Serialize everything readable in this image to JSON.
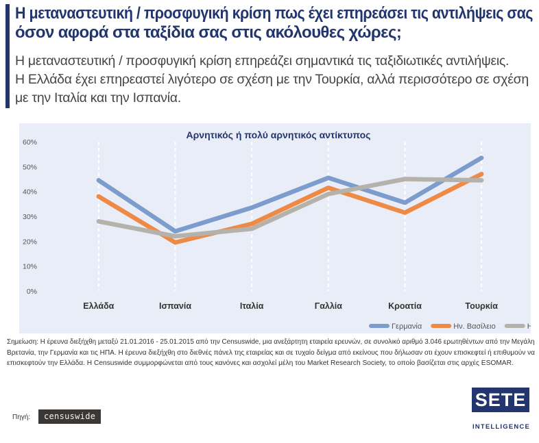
{
  "header": {
    "title_line1": "Η μεταναστευτική / προσφυγική κρίση πως έχει επηρεάσει τις αντιλήψεις σας",
    "title_line2": "όσον αφορά στα ταξίδια σας στις ακόλουθες χώρες;",
    "lead_line1": "Η μεταναστευτική / προσφυγική κρίση επηρεάζει σημαντικά τις ταξιδιωτικές αντιλήψεις.",
    "lead_line2": "Η Ελλάδα έχει επηρεαστεί λιγότερο σε σχέση με την Τουρκία, αλλά περισσότερο σε σχέση",
    "lead_line3": "με την Ιταλία και την Ισπανία."
  },
  "chart_data": {
    "type": "line",
    "title": "Αρνητικός ή πολύ αρνητικός αντίκτυπος",
    "categories": [
      "Ελλάδα",
      "Ισπανία",
      "Ιταλία",
      "Γαλλία",
      "Κροατία",
      "Τουρκία"
    ],
    "y_ticks": [
      "0%",
      "10%",
      "20%",
      "30%",
      "40%",
      "50%",
      "60%"
    ],
    "ylim": [
      0,
      60
    ],
    "y_unit": "%",
    "grid": "vertical dashed",
    "legend_position": "bottom-right",
    "series": [
      {
        "name": "Γερμανία",
        "color": "#7c9ccb",
        "values": [
          44.5,
          24,
          33.5,
          45.5,
          35.5,
          53.5
        ]
      },
      {
        "name": "Ην. Βασίλειο",
        "color": "#ee8a45",
        "values": [
          38,
          19.5,
          27,
          41.5,
          31.5,
          47
        ]
      },
      {
        "name": "ΗΠΑ",
        "color": "#b5b1ab",
        "values": [
          28,
          22,
          25,
          39,
          45,
          44.5
        ]
      }
    ]
  },
  "footer": {
    "note_line1": "Σημείωση: Η έρευνα διεξήχθη μεταξύ 21.01.2016 - 25.01.2015 από την Censuswide, μια ανεξάρτητη εταιρεία ερευνών, σε συνολικό αριθμό 3.046 ερωτηθέντων από την Μεγάλη",
    "note_line2": "Βρετανία, την Γερμανία και τις ΗΠΑ. Η έρευνα διεξήχθη στο διεθνές πάνελ της εταιρείας και σε τυχαίο δείγμα από εκείνους που δήλωσαν οτι έχουν επισκεφτεί ή επιθυμούν να",
    "note_line3": "επισκεφτούν την Ελλάδα. Η Censuswide συμμορφώνεται από τους κανόνες και ασχολεί μέλη του Market Research Society, το οποίο βασίζεται στις αρχές ESOMAR.",
    "source_label": "Πηγή:",
    "source_name": "censuswide"
  },
  "brand": {
    "name": "SETE",
    "subtitle": "INTELLIGENCE",
    "color": "#22356e"
  }
}
